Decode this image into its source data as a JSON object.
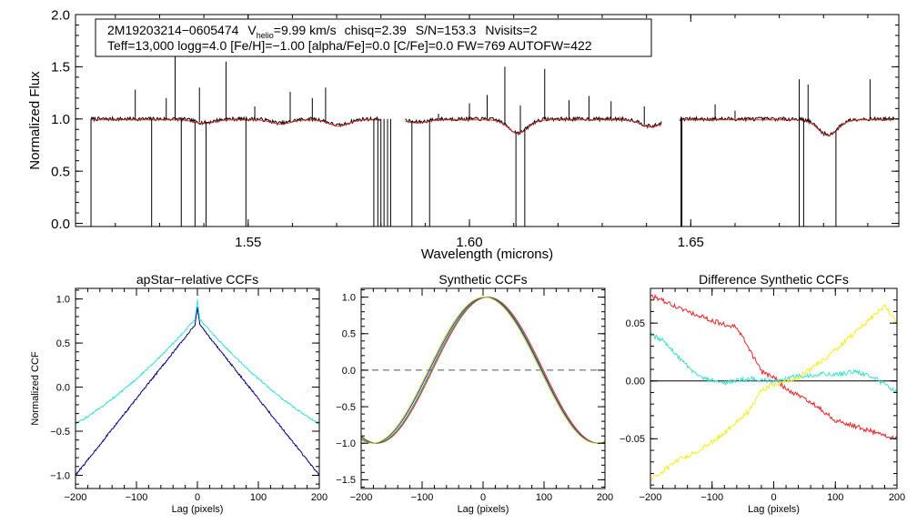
{
  "chart_data": [
    {
      "id": "spectrum",
      "type": "line",
      "title": "",
      "xlabel": "Wavelength (microns)",
      "ylabel": "Normalized Flux",
      "xlim": [
        1.511,
        1.697
      ],
      "ylim": [
        -0.03,
        2.0
      ],
      "xticks": [
        1.55,
        1.6,
        1.65
      ],
      "xtick_labels": [
        "1.55",
        "1.60",
        "1.65"
      ],
      "yticks": [
        0.0,
        0.5,
        1.0,
        1.5,
        2.0
      ],
      "ytick_labels": [
        "0.0",
        "0.5",
        "1.0",
        "1.5",
        "2.0"
      ],
      "chips": [
        [
          1.5145,
          1.58
        ],
        [
          1.5855,
          1.6435
        ],
        [
          1.6475,
          1.696
        ]
      ],
      "absorption_troughs": [
        {
          "center": 1.54,
          "depth": 0.035
        },
        {
          "center": 1.5575,
          "depth": 0.04
        },
        {
          "center": 1.5705,
          "depth": 0.06
        },
        {
          "center": 1.5882,
          "depth": 0.03
        },
        {
          "center": 1.611,
          "depth": 0.13
        },
        {
          "center": 1.641,
          "depth": 0.07
        },
        {
          "center": 1.681,
          "depth": 0.15
        }
      ],
      "emission_spikes": [
        {
          "x": 1.5245,
          "top": 1.28
        },
        {
          "x": 1.5315,
          "top": 1.2
        },
        {
          "x": 1.5335,
          "top": 1.94
        },
        {
          "x": 1.539,
          "top": 1.3
        },
        {
          "x": 1.545,
          "top": 1.55
        },
        {
          "x": 1.5515,
          "top": 1.12
        },
        {
          "x": 1.5595,
          "top": 1.26
        },
        {
          "x": 1.5645,
          "top": 1.2
        },
        {
          "x": 1.5675,
          "top": 1.3
        },
        {
          "x": 1.593,
          "top": 1.05
        },
        {
          "x": 1.6,
          "top": 1.15
        },
        {
          "x": 1.604,
          "top": 1.23
        },
        {
          "x": 1.608,
          "top": 1.5
        },
        {
          "x": 1.6115,
          "top": 1.13
        },
        {
          "x": 1.617,
          "top": 1.48
        },
        {
          "x": 1.6225,
          "top": 1.18
        },
        {
          "x": 1.627,
          "top": 1.22
        },
        {
          "x": 1.632,
          "top": 1.17
        },
        {
          "x": 1.6395,
          "top": 1.12
        },
        {
          "x": 1.6555,
          "top": 1.14
        },
        {
          "x": 1.66,
          "top": 1.08
        },
        {
          "x": 1.6745,
          "top": 1.38
        },
        {
          "x": 1.6765,
          "top": 1.33
        },
        {
          "x": 1.6905,
          "top": 1.38
        }
      ],
      "bad_pixel_dropouts": [
        1.5145,
        1.5282,
        1.5349,
        1.538,
        1.5405,
        1.5495,
        1.5784,
        1.5793,
        1.58,
        1.5807,
        1.5815,
        1.5822,
        1.587,
        1.591,
        1.6105,
        1.6125,
        1.6478,
        1.648,
        1.6745,
        1.6755,
        1.6828
      ],
      "series": [
        {
          "name": "observed spectrum",
          "color": "#000000"
        },
        {
          "name": "best-fit model",
          "color": "#e8282a"
        }
      ],
      "annotation": {
        "line1": {
          "object": "2M19203214−0605474",
          "vhelio_prefix": "V",
          "vhelio_sub": "helio",
          "vhelio_value": "=9.99 km/s",
          "chisq": "chisq=2.39",
          "snr": "S/N=153.3",
          "nvisits": "Nvisits=2"
        },
        "line2": "Teff=13,000 logg=4.0 [Fe/H]=−1.00 [alpha/Fe]=0.0 [C/Fe]=0.0 FW=769 AUTOFW=422"
      }
    },
    {
      "id": "apstar_ccf",
      "type": "line",
      "title": "apStar−relative CCFs",
      "xlabel": "Lag (pixels)",
      "ylabel": "Normalized CCF",
      "xlim": [
        -200,
        200
      ],
      "ylim": [
        -1.15,
        1.12
      ],
      "xticks": [
        -200,
        -100,
        0,
        100,
        200
      ],
      "xtick_labels": [
        "−200",
        "−100",
        "0",
        "100",
        "200"
      ],
      "yticks": [
        -1.0,
        -0.5,
        0.0,
        0.5,
        1.0
      ],
      "ytick_labels": [
        "−1.0",
        "−0.5",
        "0.0",
        "0.5",
        "1.0"
      ],
      "series": [
        {
          "name": "visit 1",
          "color": "#000080",
          "peak": 0.74,
          "slope": 0.0087,
          "curve": 0.0,
          "cusp": 0.17
        },
        {
          "name": "visit 2",
          "color": "#40e0d0",
          "peak": 0.8,
          "slope": 0.008,
          "curve": 9.5e-06,
          "cusp": 0.19
        }
      ]
    },
    {
      "id": "synthetic_ccf",
      "type": "line",
      "title": "Synthetic CCFs",
      "xlabel": "Lag (pixels)",
      "ylabel": "",
      "xlim": [
        -200,
        200
      ],
      "ylim": [
        -1.62,
        1.12
      ],
      "xticks": [
        -200,
        -100,
        0,
        100,
        200
      ],
      "xtick_labels": [
        "−200",
        "−100",
        "0",
        "100",
        "200"
      ],
      "yticks": [
        -1.5,
        -1.0,
        -0.5,
        0.0,
        0.5,
        1.0
      ],
      "ytick_labels": [
        "−1.5",
        "−1.0",
        "−0.5",
        "0.0",
        "0.5",
        "1.0"
      ],
      "reference_line": {
        "y": 0.0,
        "style": "dashed"
      },
      "series": [
        {
          "name": "model 1",
          "color": "#e8282a",
          "center": 8,
          "zero": 99
        },
        {
          "name": "model 2",
          "color": "#1a9a3a",
          "center": 6,
          "zero": 97
        },
        {
          "name": "model 3",
          "color": "#2030c0",
          "center": 4,
          "zero": 96
        },
        {
          "name": "model 4",
          "color": "#d8d820",
          "center": 2,
          "zero": 94
        }
      ]
    },
    {
      "id": "difference_ccf",
      "type": "line",
      "title": "Difference Synthetic CCFs",
      "xlabel": "Lag (pixels)",
      "ylabel": "",
      "xlim": [
        -200,
        200
      ],
      "ylim": [
        -0.093,
        0.08
      ],
      "xticks": [
        -200,
        -100,
        0,
        100,
        200
      ],
      "xtick_labels": [
        "−200",
        "−100",
        "0",
        "100",
        "200"
      ],
      "yticks": [
        -0.05,
        0.0,
        0.05
      ],
      "ytick_labels": [
        "−0.05",
        "0.00",
        "0.05"
      ],
      "reference_line": {
        "y": 0.0,
        "style": "solid"
      },
      "series": [
        {
          "name": "red − ref",
          "color": "#e8282a",
          "x": [
            -200,
            -150,
            -100,
            -60,
            -40,
            -20,
            0,
            20,
            60,
            100,
            150,
            200
          ],
          "y": [
            0.074,
            0.062,
            0.052,
            0.046,
            0.028,
            0.008,
            0.003,
            -0.007,
            -0.018,
            -0.034,
            -0.042,
            -0.05
          ]
        },
        {
          "name": "cyan − ref",
          "color": "#40e0d0",
          "x": [
            -200,
            -180,
            -150,
            -120,
            -80,
            -40,
            0,
            40,
            80,
            110,
            130,
            160,
            200
          ],
          "y": [
            0.04,
            0.035,
            0.018,
            0.003,
            -0.002,
            0.002,
            0.0,
            0.004,
            0.006,
            0.006,
            0.008,
            0.004,
            -0.01
          ]
        },
        {
          "name": "yellow − ref",
          "color": "#f0f020",
          "x": [
            -200,
            -160,
            -120,
            -80,
            -40,
            -20,
            0,
            40,
            80,
            120,
            160,
            180,
            200
          ],
          "y": [
            -0.086,
            -0.07,
            -0.06,
            -0.045,
            -0.026,
            -0.008,
            -0.003,
            0.003,
            0.018,
            0.036,
            0.055,
            0.065,
            0.05
          ]
        }
      ]
    }
  ]
}
